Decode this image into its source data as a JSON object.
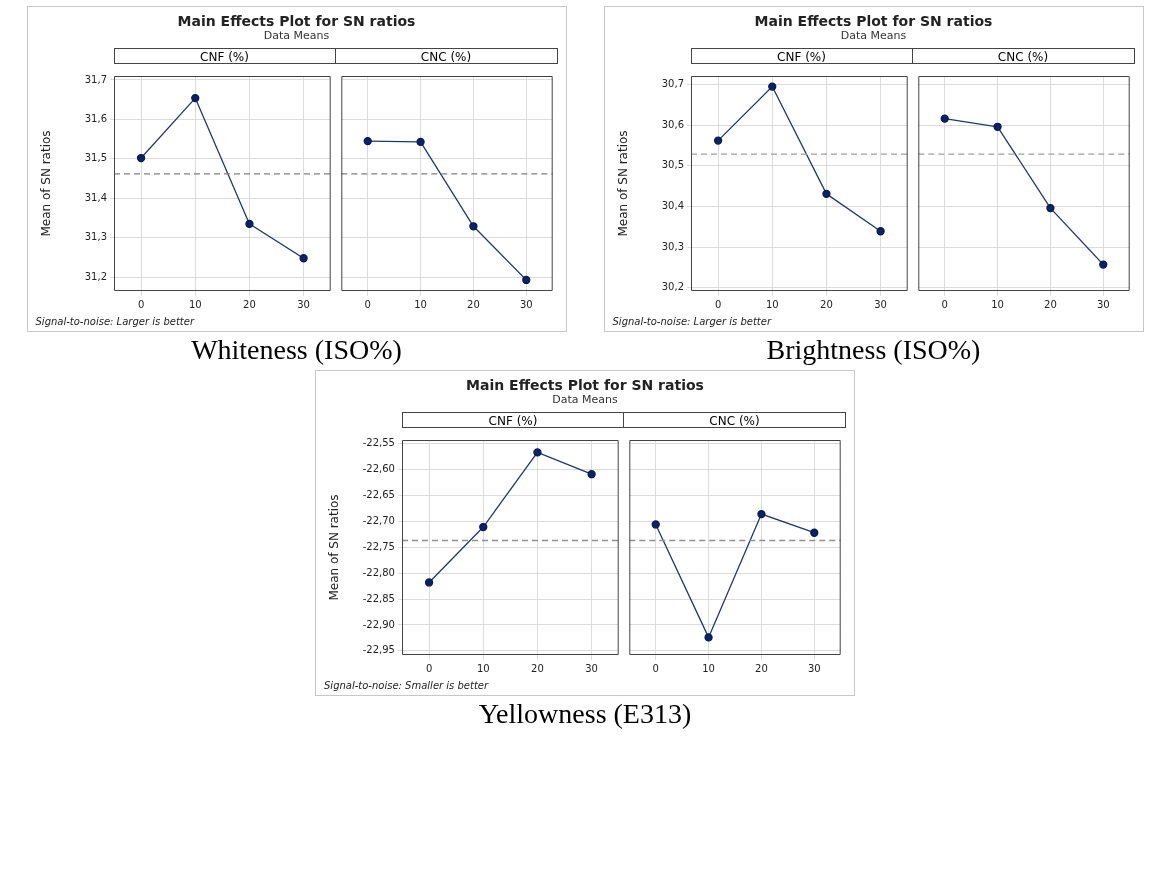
{
  "chart_data": [
    {
      "type": "line",
      "title": "Main Effects Plot for SN ratios",
      "subtitle": "Data Means",
      "xlabel": "CNF (%)",
      "ylabel": "Mean of SN ratios",
      "x": [
        0,
        10,
        20,
        30
      ],
      "series": [
        {
          "color": "#1f3a6b",
          "values": [
            31.502,
            31.654,
            31.335,
            31.248
          ]
        }
      ],
      "xlim": [
        -5,
        35
      ],
      "xticks": [
        0,
        10,
        20,
        30
      ],
      "ylim": [
        31.165,
        31.71
      ],
      "yticks": [
        {
          "value": 31.2,
          "label": "31,2"
        },
        {
          "value": 31.3,
          "label": "31,3"
        },
        {
          "value": 31.4,
          "label": "31,4"
        },
        {
          "value": 31.5,
          "label": "31,5"
        },
        {
          "value": 31.6,
          "label": "31,6"
        },
        {
          "value": 31.7,
          "label": "31,7"
        }
      ],
      "ref_lines": [
        {
          "axis": "y",
          "value": 31.462,
          "color": "#808080",
          "line_style": "dashed"
        }
      ],
      "grid": true,
      "marker": "circle",
      "legend": false,
      "annotations": [
        "Signal-to-noise: Larger is better",
        "Whiteness (ISO%)"
      ]
    },
    {
      "type": "line",
      "xlabel": "CNC (%)",
      "x": [
        0,
        10,
        20,
        30
      ],
      "series": [
        {
          "color": "#1f3a6b",
          "values": [
            31.545,
            31.543,
            31.329,
            31.193
          ]
        }
      ],
      "xlim": [
        -5,
        35
      ],
      "xticks": [
        0,
        10,
        20,
        30
      ],
      "ylim": [
        31.165,
        31.71
      ],
      "yticks": [
        31.2,
        31.3,
        31.4,
        31.5,
        31.6,
        31.7
      ],
      "ref_lines": [
        {
          "axis": "y",
          "value": 31.462,
          "color": "#808080",
          "line_style": "dashed"
        }
      ],
      "grid": true,
      "marker": "circle",
      "legend": false,
      "tick_labels": "x"
    },
    {
      "type": "line",
      "title": "Main Effects Plot for SN ratios",
      "subtitle": "Data Means",
      "xlabel": "CNF (%)",
      "ylabel": "Mean of SN ratios",
      "x": [
        0,
        10,
        20,
        30
      ],
      "series": [
        {
          "color": "#1f3a6b",
          "values": [
            30.562,
            30.695,
            30.431,
            30.339
          ]
        }
      ],
      "xlim": [
        -5,
        35
      ],
      "xticks": [
        0,
        10,
        20,
        30
      ],
      "ylim": [
        30.192,
        30.721
      ],
      "yticks": [
        {
          "value": 30.2,
          "label": "30,2"
        },
        {
          "value": 30.3,
          "label": "30,3"
        },
        {
          "value": 30.4,
          "label": "30,4"
        },
        {
          "value": 30.5,
          "label": "30,5"
        },
        {
          "value": 30.6,
          "label": "30,6"
        },
        {
          "value": 30.7,
          "label": "30,7"
        }
      ],
      "ref_lines": [
        {
          "axis": "y",
          "value": 30.529,
          "color": "#a0a0a0",
          "line_style": "dashed"
        }
      ],
      "grid": true,
      "marker": "circle",
      "legend": false,
      "annotations": [
        "Signal-to-noise: Larger is better",
        "Brightness (ISO%)"
      ]
    },
    {
      "type": "line",
      "xlabel": "CNC (%)",
      "x": [
        0,
        10,
        20,
        30
      ],
      "series": [
        {
          "color": "#1f3a6b",
          "values": [
            30.616,
            30.596,
            30.396,
            30.257
          ]
        }
      ],
      "xlim": [
        -5,
        35
      ],
      "xticks": [
        0,
        10,
        20,
        30
      ],
      "ylim": [
        30.192,
        30.721
      ],
      "yticks": [
        30.2,
        30.3,
        30.4,
        30.5,
        30.6,
        30.7
      ],
      "ref_lines": [
        {
          "axis": "y",
          "value": 30.529,
          "color": "#a0a0a0",
          "line_style": "dashed"
        }
      ],
      "grid": true,
      "marker": "circle",
      "legend": false,
      "tick_labels": "x"
    },
    {
      "type": "line",
      "title": "Main Effects Plot for SN ratios",
      "subtitle": "Data Means",
      "xlabel": "CNF (%)",
      "ylabel": "Mean of SN ratios",
      "x": [
        0,
        10,
        20,
        30
      ],
      "series": [
        {
          "color": "#1f3a6b",
          "values": [
            -22.818,
            -22.711,
            -22.567,
            -22.609
          ]
        }
      ],
      "xlim": [
        -5,
        35
      ],
      "xticks": [
        0,
        10,
        20,
        30
      ],
      "ylim": [
        -22.958,
        -22.543
      ],
      "yticks": [
        {
          "value": -22.95,
          "label": "-22,95"
        },
        {
          "value": -22.9,
          "label": "-22,90"
        },
        {
          "value": -22.85,
          "label": "-22,85"
        },
        {
          "value": -22.8,
          "label": "-22,80"
        },
        {
          "value": -22.75,
          "label": "-22,75"
        },
        {
          "value": -22.7,
          "label": "-22,70"
        },
        {
          "value": -22.65,
          "label": "-22,65"
        },
        {
          "value": -22.6,
          "label": "-22,60"
        },
        {
          "value": -22.55,
          "label": "-22,55"
        }
      ],
      "ref_lines": [
        {
          "axis": "y",
          "value": -22.737,
          "color": "#909090",
          "line_style": "dashed"
        }
      ],
      "grid": true,
      "marker": "circle",
      "legend": false,
      "annotations": [
        "Signal-to-noise: Smaller is better",
        "Yellowness (E313)"
      ]
    },
    {
      "type": "line",
      "xlabel": "CNC (%)",
      "x": [
        0,
        10,
        20,
        30
      ],
      "series": [
        {
          "color": "#1f3a6b",
          "values": [
            -22.706,
            -22.924,
            -22.686,
            -22.722
          ]
        }
      ],
      "xlim": [
        -5,
        35
      ],
      "xticks": [
        0,
        10,
        20,
        30
      ],
      "ylim": [
        -22.958,
        -22.543
      ],
      "yticks": [
        -22.95,
        -22.9,
        -22.85,
        -22.8,
        -22.75,
        -22.7,
        -22.65,
        -22.6,
        -22.55
      ],
      "ref_lines": [
        {
          "axis": "y",
          "value": -22.737,
          "color": "#909090",
          "line_style": "dashed"
        }
      ],
      "grid": true,
      "marker": "circle",
      "legend": false,
      "tick_labels": "x"
    }
  ]
}
